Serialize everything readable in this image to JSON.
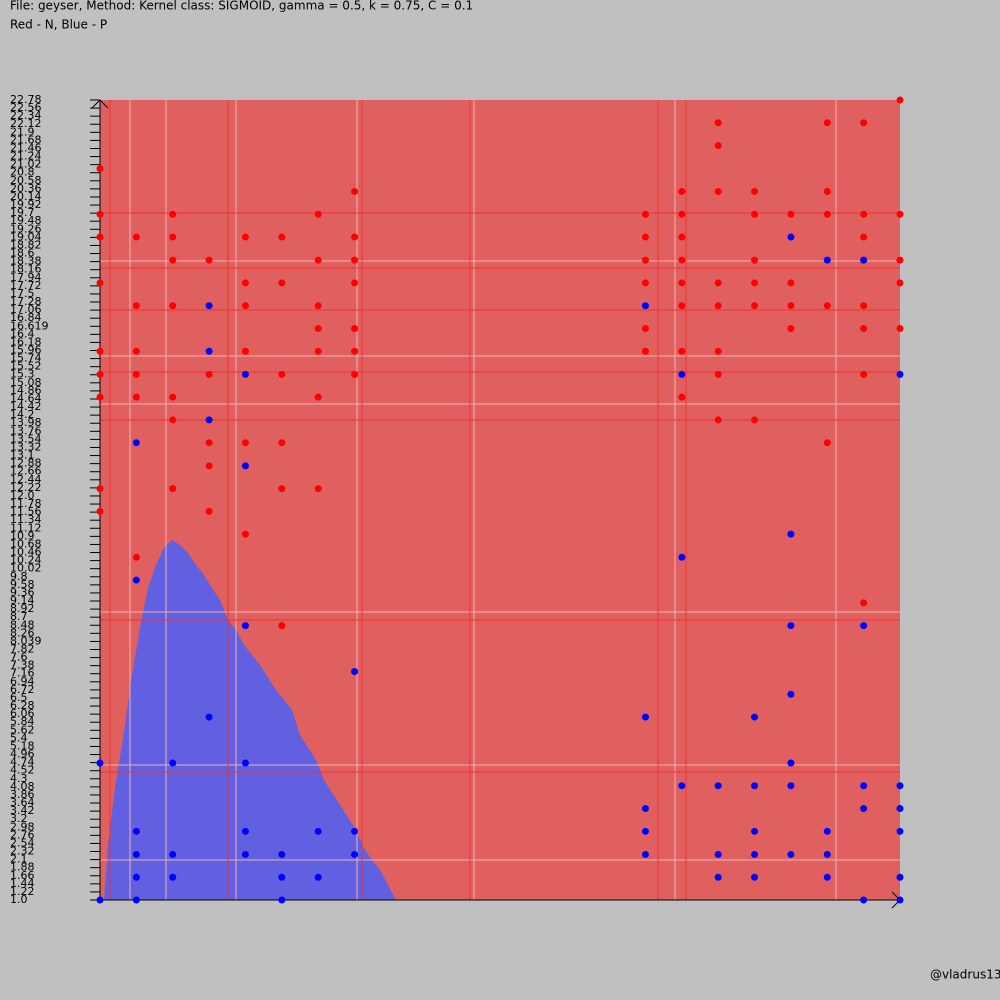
{
  "header": {
    "line1": "File: geyser, Method: Kernel class: SIGMOID, gamma = 0.5, k = 0.75, C = 0.1",
    "line2": "Red - N, Blue - P"
  },
  "footer": "@vladrus13",
  "chart_data": {
    "type": "scatter",
    "xlim": [
      1,
      23
    ],
    "ylim": [
      1.0,
      22.78
    ],
    "yticks": [
      22.78,
      22.56,
      22.34,
      22.12,
      21.9,
      21.68,
      21.46,
      21.24,
      21.02,
      20.8,
      20.58,
      20.36,
      20.14,
      19.92,
      19.7,
      19.48,
      19.26,
      19.04,
      18.82,
      18.6,
      18.38,
      18.16,
      17.94,
      17.72,
      17.5,
      17.28,
      17.06,
      16.84,
      16.619,
      16.4,
      16.18,
      15.96,
      15.74,
      15.52,
      15.3,
      15.08,
      14.86,
      14.64,
      14.42,
      14.2,
      13.98,
      13.76,
      13.54,
      13.32,
      13.1,
      12.88,
      12.66,
      12.44,
      12.22,
      {
        "value": 12,
        "label": "12.0"
      },
      11.78,
      11.56,
      11.34,
      11.12,
      10.9,
      10.68,
      10.46,
      10.24,
      10.02,
      9.8,
      9.58,
      9.36,
      9.14,
      8.92,
      8.7,
      8.48,
      8.26,
      8.039,
      7.82,
      7.6,
      7.38,
      7.16,
      6.94,
      6.72,
      6.5,
      6.28,
      6.06,
      5.84,
      5.62,
      5.4,
      5.18,
      4.96,
      4.74,
      4.52,
      4.3,
      4.08,
      3.86,
      3.64,
      3.42,
      3.2,
      2.98,
      2.76,
      2.54,
      2.32,
      2.1,
      1.88,
      1.66,
      1.44,
      1.22,
      {
        "value": 1,
        "label": "1.0"
      }
    ],
    "series": [
      {
        "color": "#ff0000",
        "x": [
          23,
          18,
          21,
          22,
          18,
          1,
          8,
          17,
          18,
          19,
          21,
          1,
          3,
          7,
          16,
          17,
          19,
          20,
          21,
          22,
          23,
          1,
          2,
          3,
          5,
          6,
          8,
          16,
          17,
          22,
          3,
          4,
          7,
          8,
          16,
          17,
          19,
          23,
          1,
          5,
          6,
          8,
          16,
          17,
          18,
          19,
          20,
          23,
          2,
          3,
          5,
          7,
          17,
          18,
          19,
          20,
          21,
          22,
          7,
          8,
          16,
          20,
          22,
          23,
          1,
          2,
          5,
          7,
          8,
          16,
          17,
          18,
          1,
          2,
          4,
          6,
          8,
          18,
          22,
          1,
          2,
          3,
          7,
          17,
          3,
          18,
          19,
          4,
          5,
          6,
          21,
          4,
          1,
          3,
          6,
          7,
          1,
          4,
          5,
          2,
          22,
          6
        ],
        "y": [
          22.78,
          22.16,
          22.16,
          22.16,
          21.54,
          20.91,
          20.29,
          20.29,
          20.29,
          20.29,
          20.29,
          19.67,
          19.67,
          19.67,
          19.67,
          19.67,
          19.67,
          19.67,
          19.67,
          19.67,
          19.67,
          19.05,
          19.05,
          19.05,
          19.05,
          19.05,
          19.05,
          19.05,
          19.05,
          19.05,
          18.42,
          18.42,
          18.42,
          18.42,
          18.42,
          18.42,
          18.42,
          18.42,
          17.8,
          17.8,
          17.8,
          17.8,
          17.8,
          17.8,
          17.8,
          17.8,
          17.8,
          17.8,
          17.18,
          17.18,
          17.18,
          17.18,
          17.18,
          17.18,
          17.18,
          17.18,
          17.18,
          17.18,
          16.56,
          16.56,
          16.56,
          16.56,
          16.56,
          16.56,
          15.94,
          15.94,
          15.94,
          15.94,
          15.94,
          15.94,
          15.94,
          15.94,
          15.31,
          15.31,
          15.31,
          15.31,
          15.31,
          15.31,
          15.31,
          14.69,
          14.69,
          14.69,
          14.69,
          14.69,
          14.07,
          14.07,
          14.07,
          13.45,
          13.45,
          13.45,
          13.45,
          12.82,
          12.2,
          12.2,
          12.2,
          12.2,
          11.58,
          11.58,
          10.96,
          10.33,
          9.09,
          8.47
        ]
      },
      {
        "color": "#0000ff",
        "x": [
          20,
          21,
          22,
          4,
          16,
          4,
          5,
          17,
          23,
          4,
          2,
          5,
          20,
          17,
          2,
          5,
          20,
          22,
          8,
          20,
          4,
          16,
          19,
          1,
          3,
          5,
          20,
          17,
          18,
          19,
          20,
          22,
          23,
          16,
          22,
          23,
          2,
          5,
          7,
          8,
          16,
          19,
          21,
          23,
          2,
          3,
          5,
          6,
          8,
          16,
          18,
          19,
          20,
          21,
          2,
          3,
          6,
          7,
          18,
          19,
          21,
          23,
          1,
          2,
          6,
          22,
          23
        ],
        "y": [
          19.05,
          18.42,
          18.42,
          17.18,
          17.18,
          15.94,
          15.31,
          15.31,
          15.31,
          14.07,
          13.45,
          12.82,
          10.96,
          10.33,
          9.71,
          8.47,
          8.47,
          8.47,
          7.22,
          6.6,
          5.98,
          5.98,
          5.98,
          4.73,
          4.73,
          4.73,
          4.73,
          4.11,
          4.11,
          4.11,
          4.11,
          4.11,
          4.11,
          3.49,
          3.49,
          3.49,
          2.87,
          2.87,
          2.87,
          2.87,
          2.87,
          2.87,
          2.87,
          2.87,
          2.24,
          2.24,
          2.24,
          2.24,
          2.24,
          2.24,
          2.24,
          2.24,
          2.24,
          2.24,
          1.62,
          1.62,
          1.62,
          1.62,
          1.62,
          1.62,
          1.62,
          1.62,
          1.0,
          1.0,
          1.0,
          1.0,
          1.0
        ]
      }
    ]
  }
}
